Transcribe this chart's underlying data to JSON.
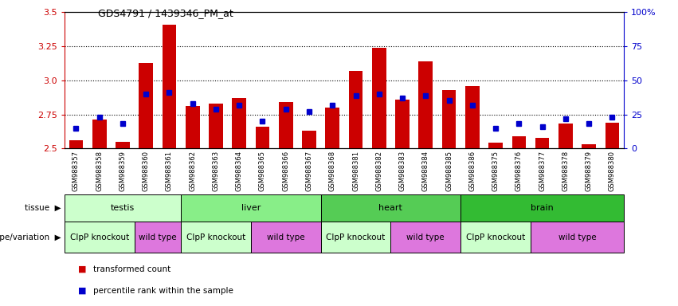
{
  "title": "GDS4791 / 1439346_PM_at",
  "samples": [
    "GSM988357",
    "GSM988358",
    "GSM988359",
    "GSM988360",
    "GSM988361",
    "GSM988362",
    "GSM988363",
    "GSM988364",
    "GSM988365",
    "GSM988366",
    "GSM988367",
    "GSM988368",
    "GSM988381",
    "GSM988382",
    "GSM988383",
    "GSM988384",
    "GSM988385",
    "GSM988386",
    "GSM988375",
    "GSM988376",
    "GSM988377",
    "GSM988378",
    "GSM988379",
    "GSM988380"
  ],
  "red_values": [
    2.56,
    2.71,
    2.55,
    3.13,
    3.41,
    2.81,
    2.83,
    2.87,
    2.66,
    2.84,
    2.63,
    2.8,
    3.07,
    3.24,
    2.86,
    3.14,
    2.93,
    2.96,
    2.54,
    2.59,
    2.58,
    2.68,
    2.53,
    2.69
  ],
  "blue_pct": [
    15,
    23,
    18,
    40,
    41,
    33,
    29,
    32,
    20,
    29,
    27,
    32,
    39,
    40,
    37,
    39,
    35,
    32,
    15,
    18,
    16,
    22,
    18,
    23
  ],
  "ylim_left": [
    2.5,
    3.5
  ],
  "ylim_right": [
    0,
    100
  ],
  "yticks_left": [
    2.5,
    2.75,
    3.0,
    3.25,
    3.5
  ],
  "yticks_right": [
    0,
    25,
    50,
    75,
    100
  ],
  "bar_bottom": 2.5,
  "tissue_groups": [
    {
      "label": "testis",
      "start": 0,
      "end": 5,
      "color": "#ccffcc"
    },
    {
      "label": "liver",
      "start": 5,
      "end": 11,
      "color": "#88ee88"
    },
    {
      "label": "heart",
      "start": 11,
      "end": 17,
      "color": "#55cc55"
    },
    {
      "label": "brain",
      "start": 17,
      "end": 24,
      "color": "#33bb33"
    }
  ],
  "geno_groups": [
    {
      "label": "ClpP knockout",
      "start": 0,
      "end": 3,
      "color": "#ccffcc"
    },
    {
      "label": "wild type",
      "start": 3,
      "end": 5,
      "color": "#dd77dd"
    },
    {
      "label": "ClpP knockout",
      "start": 5,
      "end": 8,
      "color": "#ccffcc"
    },
    {
      "label": "wild type",
      "start": 8,
      "end": 11,
      "color": "#dd77dd"
    },
    {
      "label": "ClpP knockout",
      "start": 11,
      "end": 14,
      "color": "#ccffcc"
    },
    {
      "label": "wild type",
      "start": 14,
      "end": 17,
      "color": "#dd77dd"
    },
    {
      "label": "ClpP knockout",
      "start": 17,
      "end": 20,
      "color": "#ccffcc"
    },
    {
      "label": "wild type",
      "start": 20,
      "end": 24,
      "color": "#dd77dd"
    }
  ],
  "red_color": "#cc0000",
  "blue_color": "#0000cc",
  "bar_width": 0.6,
  "bg_color": "#d0d0d0",
  "grid_lines": [
    2.75,
    3.0,
    3.25
  ]
}
